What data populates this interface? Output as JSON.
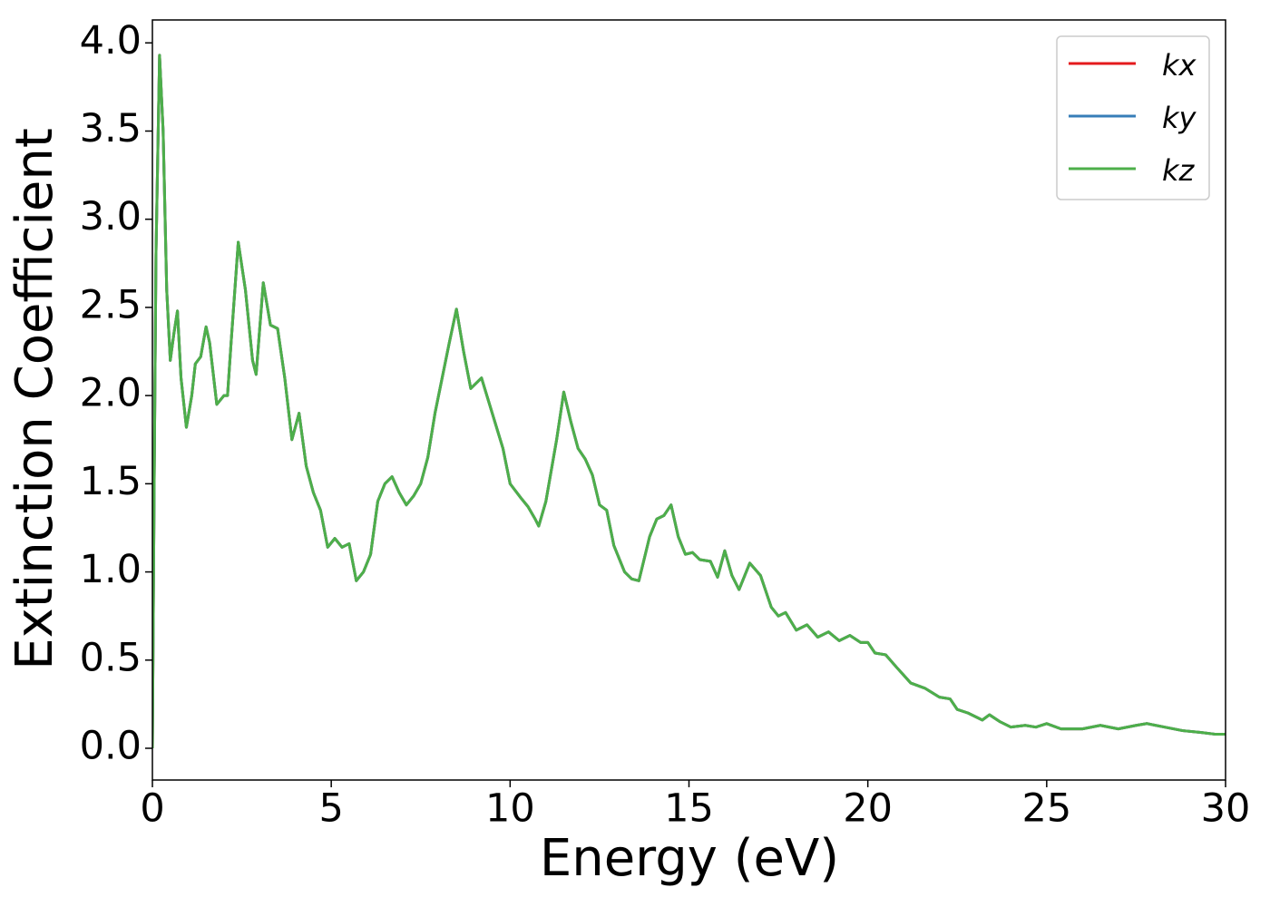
{
  "chart_data": {
    "type": "line",
    "xlabel": "Energy (eV)",
    "ylabel": "Extinction Coefficient",
    "x": [
      0,
      0.05,
      0.1,
      0.2,
      0.3,
      0.4,
      0.5,
      0.6,
      0.7,
      0.8,
      0.95,
      1.1,
      1.2,
      1.35,
      1.5,
      1.6,
      1.8,
      2.0,
      2.1,
      2.2,
      2.4,
      2.6,
      2.8,
      2.9,
      3.1,
      3.3,
      3.5,
      3.7,
      3.9,
      4.1,
      4.3,
      4.5,
      4.7,
      4.9,
      5.1,
      5.3,
      5.5,
      5.7,
      5.9,
      6.1,
      6.3,
      6.5,
      6.7,
      6.9,
      7.1,
      7.3,
      7.5,
      7.7,
      7.9,
      8.1,
      8.3,
      8.5,
      8.7,
      8.9,
      9.2,
      9.5,
      9.8,
      10.0,
      10.3,
      10.5,
      10.7,
      10.8,
      11.0,
      11.3,
      11.5,
      11.7,
      11.9,
      12.1,
      12.3,
      12.5,
      12.7,
      12.9,
      13.2,
      13.4,
      13.6,
      13.9,
      14.1,
      14.3,
      14.5,
      14.7,
      14.9,
      15.1,
      15.3,
      15.6,
      15.8,
      16.0,
      16.2,
      16.4,
      16.7,
      17.0,
      17.3,
      17.5,
      17.7,
      18.0,
      18.3,
      18.6,
      18.9,
      19.2,
      19.5,
      19.8,
      20.0,
      20.2,
      20.5,
      20.8,
      21.2,
      21.6,
      22.0,
      22.3,
      22.5,
      22.8,
      23.2,
      23.4,
      23.7,
      24.0,
      24.4,
      24.7,
      25.0,
      25.4,
      26.0,
      26.5,
      27.0,
      27.5,
      27.8,
      28.3,
      28.8,
      29.3,
      29.7,
      30.0
    ],
    "series": [
      {
        "name": "kx",
        "color": "#e41a1c",
        "values": [
          0,
          1.5,
          2.8,
          3.93,
          3.5,
          2.6,
          2.2,
          2.35,
          2.48,
          2.1,
          1.82,
          2.0,
          2.18,
          2.22,
          2.39,
          2.3,
          1.95,
          2.0,
          2.0,
          2.3,
          2.87,
          2.6,
          2.2,
          2.12,
          2.64,
          2.4,
          2.38,
          2.1,
          1.75,
          1.9,
          1.6,
          1.45,
          1.35,
          1.14,
          1.19,
          1.14,
          1.16,
          0.95,
          1.0,
          1.1,
          1.4,
          1.5,
          1.54,
          1.45,
          1.38,
          1.43,
          1.5,
          1.65,
          1.9,
          2.1,
          2.3,
          2.49,
          2.25,
          2.04,
          2.1,
          1.9,
          1.7,
          1.5,
          1.42,
          1.37,
          1.3,
          1.26,
          1.4,
          1.75,
          2.02,
          1.85,
          1.7,
          1.64,
          1.55,
          1.38,
          1.35,
          1.15,
          1.0,
          0.96,
          0.95,
          1.2,
          1.3,
          1.32,
          1.38,
          1.2,
          1.1,
          1.11,
          1.07,
          1.06,
          0.97,
          1.12,
          0.98,
          0.9,
          1.05,
          0.98,
          0.8,
          0.75,
          0.77,
          0.67,
          0.7,
          0.63,
          0.66,
          0.61,
          0.64,
          0.6,
          0.6,
          0.54,
          0.53,
          0.46,
          0.37,
          0.34,
          0.29,
          0.28,
          0.22,
          0.2,
          0.16,
          0.19,
          0.15,
          0.12,
          0.13,
          0.12,
          0.14,
          0.11,
          0.11,
          0.13,
          0.11,
          0.13,
          0.14,
          0.12,
          0.1,
          0.09,
          0.08,
          0.08
        ]
      },
      {
        "name": "ky",
        "color": "#377eb8",
        "values": [
          0,
          1.5,
          2.8,
          3.93,
          3.5,
          2.6,
          2.2,
          2.35,
          2.48,
          2.1,
          1.82,
          2.0,
          2.18,
          2.22,
          2.39,
          2.3,
          1.95,
          2.0,
          2.0,
          2.3,
          2.87,
          2.6,
          2.2,
          2.12,
          2.64,
          2.4,
          2.38,
          2.1,
          1.75,
          1.9,
          1.6,
          1.45,
          1.35,
          1.14,
          1.19,
          1.14,
          1.16,
          0.95,
          1.0,
          1.1,
          1.4,
          1.5,
          1.54,
          1.45,
          1.38,
          1.43,
          1.5,
          1.65,
          1.9,
          2.1,
          2.3,
          2.49,
          2.25,
          2.04,
          2.1,
          1.9,
          1.7,
          1.5,
          1.42,
          1.37,
          1.3,
          1.26,
          1.4,
          1.75,
          2.02,
          1.85,
          1.7,
          1.64,
          1.55,
          1.38,
          1.35,
          1.15,
          1.0,
          0.96,
          0.95,
          1.2,
          1.3,
          1.32,
          1.38,
          1.2,
          1.1,
          1.11,
          1.07,
          1.06,
          0.97,
          1.12,
          0.98,
          0.9,
          1.05,
          0.98,
          0.8,
          0.75,
          0.77,
          0.67,
          0.7,
          0.63,
          0.66,
          0.61,
          0.64,
          0.6,
          0.6,
          0.54,
          0.53,
          0.46,
          0.37,
          0.34,
          0.29,
          0.28,
          0.22,
          0.2,
          0.16,
          0.19,
          0.15,
          0.12,
          0.13,
          0.12,
          0.14,
          0.11,
          0.11,
          0.13,
          0.11,
          0.13,
          0.14,
          0.12,
          0.1,
          0.09,
          0.08,
          0.08
        ]
      },
      {
        "name": "kz",
        "color": "#4daf4a",
        "values": [
          0,
          1.5,
          2.8,
          3.93,
          3.5,
          2.6,
          2.2,
          2.35,
          2.48,
          2.1,
          1.82,
          2.0,
          2.18,
          2.22,
          2.39,
          2.3,
          1.95,
          2.0,
          2.0,
          2.3,
          2.87,
          2.6,
          2.2,
          2.12,
          2.64,
          2.4,
          2.38,
          2.1,
          1.75,
          1.9,
          1.6,
          1.45,
          1.35,
          1.14,
          1.19,
          1.14,
          1.16,
          0.95,
          1.0,
          1.1,
          1.4,
          1.5,
          1.54,
          1.45,
          1.38,
          1.43,
          1.5,
          1.65,
          1.9,
          2.1,
          2.3,
          2.49,
          2.25,
          2.04,
          2.1,
          1.9,
          1.7,
          1.5,
          1.42,
          1.37,
          1.3,
          1.26,
          1.4,
          1.75,
          2.02,
          1.85,
          1.7,
          1.64,
          1.55,
          1.38,
          1.35,
          1.15,
          1.0,
          0.96,
          0.95,
          1.2,
          1.3,
          1.32,
          1.38,
          1.2,
          1.1,
          1.11,
          1.07,
          1.06,
          0.97,
          1.12,
          0.98,
          0.9,
          1.05,
          0.98,
          0.8,
          0.75,
          0.77,
          0.67,
          0.7,
          0.63,
          0.66,
          0.61,
          0.64,
          0.6,
          0.6,
          0.54,
          0.53,
          0.46,
          0.37,
          0.34,
          0.29,
          0.28,
          0.22,
          0.2,
          0.16,
          0.19,
          0.15,
          0.12,
          0.13,
          0.12,
          0.14,
          0.11,
          0.11,
          0.13,
          0.11,
          0.13,
          0.14,
          0.12,
          0.1,
          0.09,
          0.08,
          0.08
        ]
      }
    ],
    "xlim": [
      0,
      30
    ],
    "xticks": [
      0,
      5,
      10,
      15,
      20,
      25,
      30
    ],
    "ylim": [
      -0.18,
      4.13
    ],
    "yticks": [
      {
        "value": 0,
        "label": "0.0"
      },
      {
        "value": 0.5,
        "label": "0.5"
      },
      {
        "value": 1,
        "label": "1.0"
      },
      {
        "value": 1.5,
        "label": "1.5"
      },
      {
        "value": 2,
        "label": "2.0"
      },
      {
        "value": 2.5,
        "label": "2.5"
      },
      {
        "value": 3,
        "label": "3.0"
      },
      {
        "value": 3.5,
        "label": "3.5"
      },
      {
        "value": 4,
        "label": "4.0"
      }
    ],
    "grid": false,
    "legend": "upper right"
  }
}
